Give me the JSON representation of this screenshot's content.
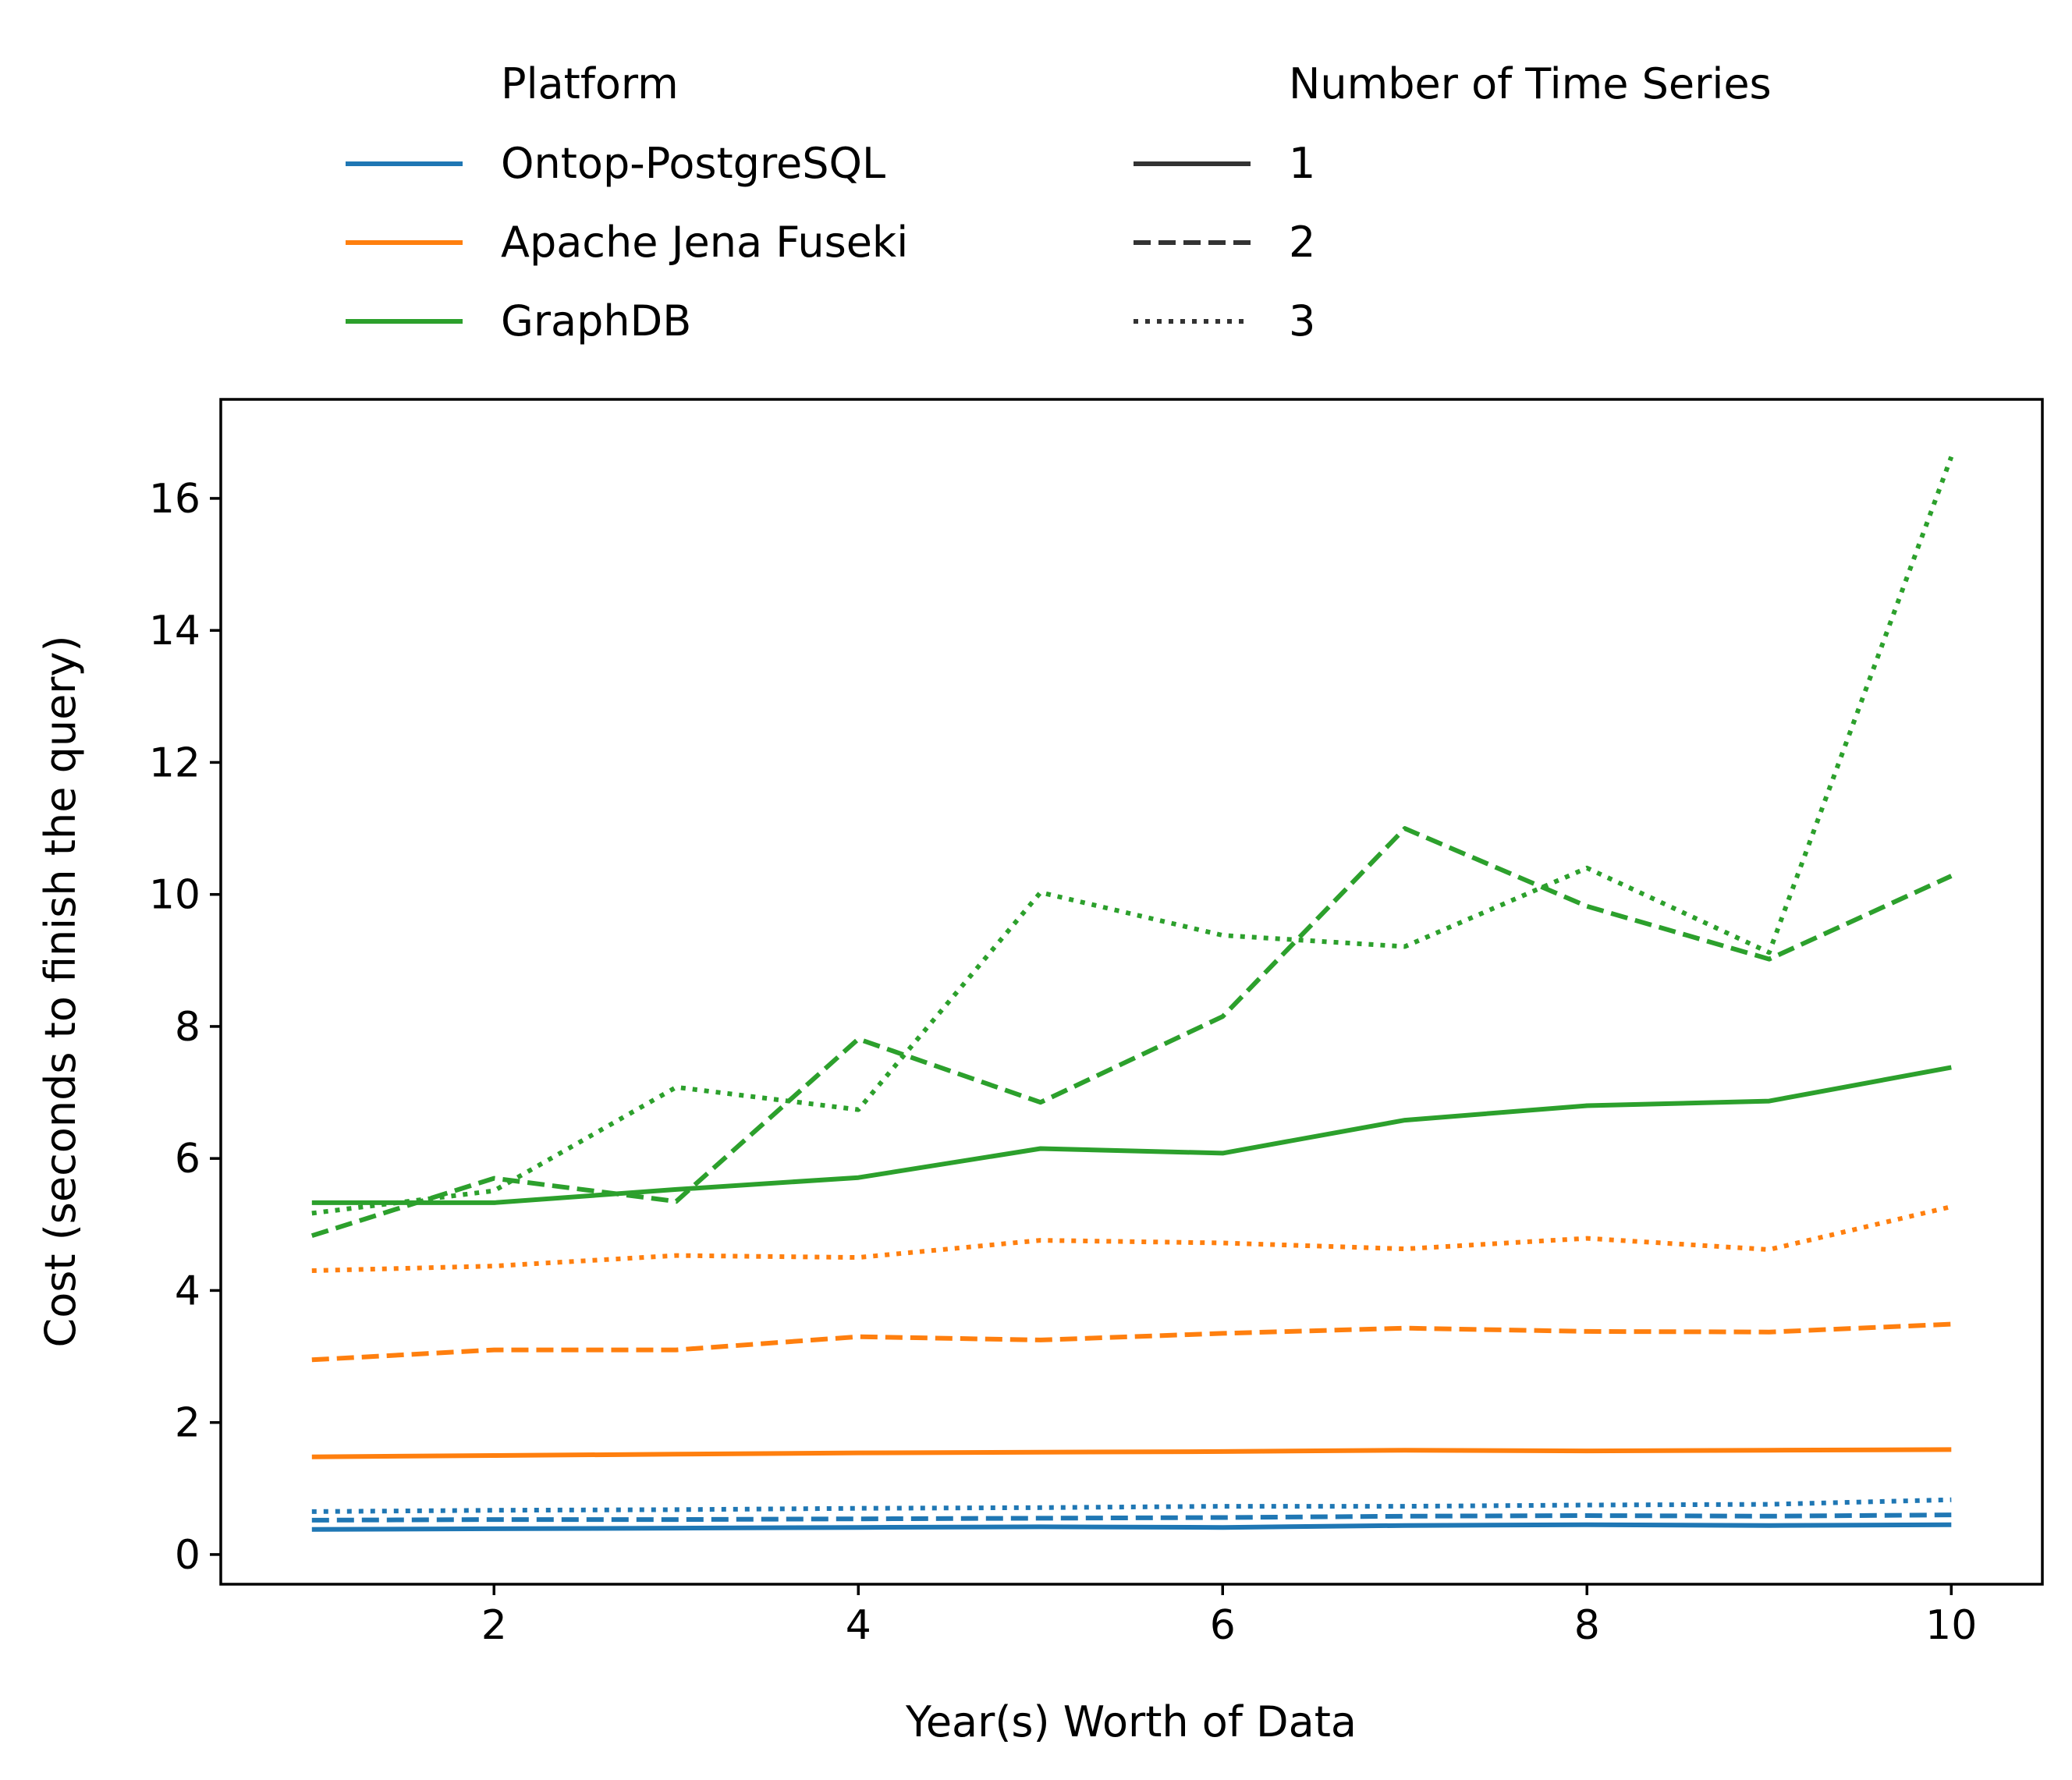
{
  "chart_data": {
    "type": "line",
    "title": "",
    "xlabel": "Year(s) Worth of Data",
    "ylabel": "Cost (seconds to finish the query)",
    "xlim": [
      0.5,
      10.5
    ],
    "ylim": [
      -0.45,
      17.5
    ],
    "xticks": [
      2,
      4,
      6,
      8,
      10
    ],
    "yticks": [
      0,
      2,
      4,
      6,
      8,
      10,
      12,
      14,
      16
    ],
    "grid": false,
    "legend_position": "top-outside",
    "x": [
      1,
      2,
      3,
      4,
      5,
      6,
      7,
      8,
      9,
      10
    ],
    "legend": {
      "platform_title": "Platform",
      "platforms": [
        {
          "name": "Ontop-PostgreSQL",
          "color": "#1f77b4"
        },
        {
          "name": "Apache Jena Fuseki",
          "color": "#ff7f0e"
        },
        {
          "name": "GraphDB",
          "color": "#2ca02c"
        }
      ],
      "count_title": "Number of Time Series",
      "counts": [
        {
          "name": "1",
          "style": "solid"
        },
        {
          "name": "2",
          "style": "dashed"
        },
        {
          "name": "3",
          "style": "dotted"
        }
      ]
    },
    "series": [
      {
        "platform": "Ontop-PostgreSQL",
        "count": "1",
        "values": [
          0.38,
          0.39,
          0.4,
          0.41,
          0.42,
          0.41,
          0.44,
          0.45,
          0.44,
          0.45
        ]
      },
      {
        "platform": "Ontop-PostgreSQL",
        "count": "2",
        "values": [
          0.52,
          0.53,
          0.53,
          0.54,
          0.55,
          0.56,
          0.58,
          0.59,
          0.58,
          0.6
        ]
      },
      {
        "platform": "Ontop-PostgreSQL",
        "count": "3",
        "values": [
          0.65,
          0.67,
          0.68,
          0.7,
          0.71,
          0.73,
          0.73,
          0.75,
          0.76,
          0.83
        ]
      },
      {
        "platform": "Apache Jena Fuseki",
        "count": "1",
        "values": [
          1.48,
          1.5,
          1.52,
          1.54,
          1.55,
          1.56,
          1.58,
          1.57,
          1.58,
          1.59
        ]
      },
      {
        "platform": "Apache Jena Fuseki",
        "count": "2",
        "values": [
          2.95,
          3.1,
          3.1,
          3.3,
          3.25,
          3.35,
          3.43,
          3.38,
          3.37,
          3.49
        ]
      },
      {
        "platform": "Apache Jena Fuseki",
        "count": "3",
        "values": [
          4.3,
          4.37,
          4.53,
          4.5,
          4.76,
          4.72,
          4.63,
          4.79,
          4.62,
          5.27
        ]
      },
      {
        "platform": "GraphDB",
        "count": "1",
        "values": [
          5.33,
          5.33,
          5.53,
          5.71,
          6.15,
          6.08,
          6.58,
          6.8,
          6.87,
          7.38
        ]
      },
      {
        "platform": "GraphDB",
        "count": "2",
        "values": [
          4.83,
          5.7,
          5.35,
          7.81,
          6.85,
          8.15,
          11.0,
          9.82,
          9.02,
          10.28
        ]
      },
      {
        "platform": "GraphDB",
        "count": "3",
        "values": [
          5.17,
          5.51,
          7.08,
          6.74,
          10.03,
          9.38,
          9.21,
          10.4,
          9.12,
          16.63
        ]
      }
    ]
  }
}
